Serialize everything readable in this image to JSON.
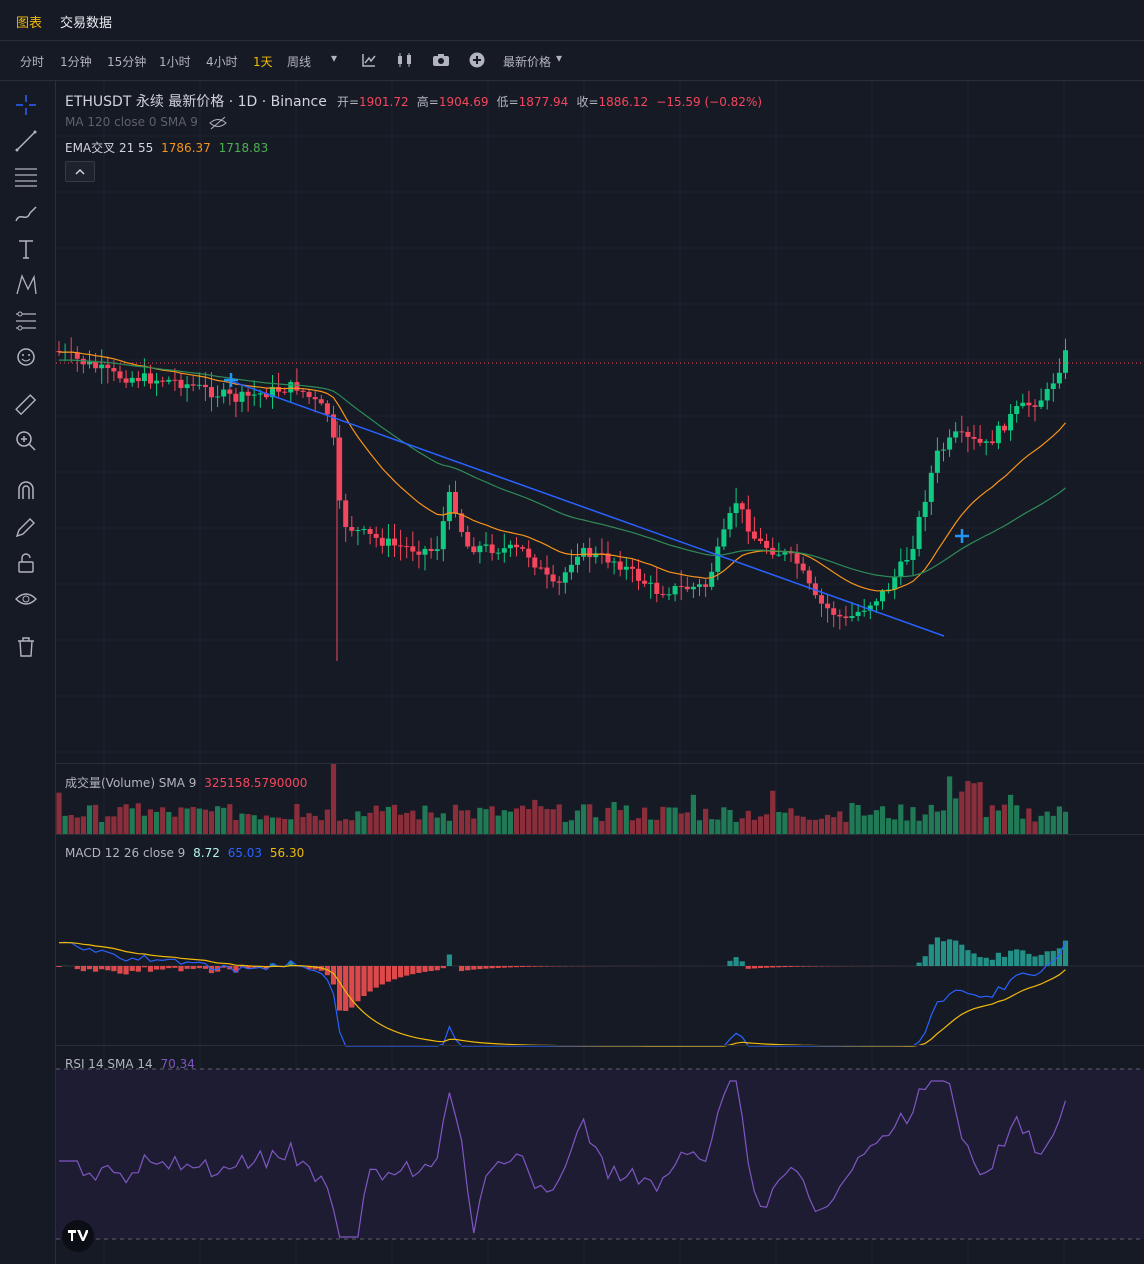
{
  "top_tabs": [
    {
      "label": "图表",
      "active": true
    },
    {
      "label": "交易数据",
      "active": false
    }
  ],
  "toolbar": {
    "intervals": [
      "分时",
      "1分钟",
      "15分钟",
      "1小时",
      "4小时",
      "1天",
      "周线"
    ],
    "active_interval": "1天",
    "price_type_label": "最新价格"
  },
  "legend": {
    "symbol": "ETHUSDT 永续 最新价格 · 1D · Binance",
    "open_label": "开=",
    "open": "1901.72",
    "high_label": "高=",
    "high": "1904.69",
    "low_label": "低=",
    "low": "1877.94",
    "close_label": "收=",
    "close": "1886.12",
    "change": "−15.59 (−0.82%)",
    "ma_label": "MA 120 close 0 SMA 9",
    "ema_label": "EMA交叉 21 55",
    "ema_fast": "1786.37",
    "ema_slow": "1718.83"
  },
  "volume_legend": {
    "label": "成交量(Volume) SMA 9",
    "value": "325158.5790000"
  },
  "macd_legend": {
    "label": "MACD 12 26 close 9",
    "hist": "8.72",
    "macd": "65.03",
    "signal": "56.30"
  },
  "rsi_legend": {
    "label": "RSI 14 SMA 14",
    "value": "70.34"
  },
  "colors": {
    "up": "#0ecb81",
    "down": "#f6465d",
    "ema_fast": "#f7931a",
    "ema_slow": "#2e8b57",
    "trendline": "#2962ff",
    "macd": "#2962ff",
    "signal": "#f0b90b",
    "rsi": "#7e57c2",
    "accent": "#f0b90b"
  },
  "chart_data": {
    "type": "candlestick",
    "title": "ETHUSDT 永续 最新价格 · 1D · Binance",
    "last_candle": {
      "open": 1901.72,
      "high": 1904.69,
      "low": 1877.94,
      "close": 1886.12
    },
    "ema": {
      "fast_period": 21,
      "fast_value": 1786.37,
      "slow_period": 55,
      "slow_value": 1718.83
    },
    "volume_sma_value": 325158.579,
    "macd": {
      "fast": 12,
      "slow": 26,
      "signal_period": 9,
      "histogram": 8.72,
      "macd": 65.03,
      "signal": 56.3
    },
    "rsi": {
      "period": 14,
      "sma": 14,
      "value": 70.34
    }
  }
}
